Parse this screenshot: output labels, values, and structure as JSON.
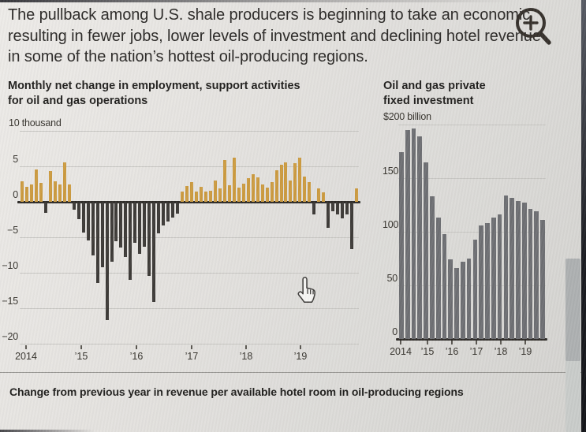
{
  "headline": {
    "lines": [
      "The pullback among U.S. shale producers is beginning to take an economic",
      "resulting in fewer jobs, lower levels of investment and declining hotel revenue",
      "in some of the nation’s hottest oil-producing regions."
    ]
  },
  "zoom_icon": {
    "name": "magnifier-zoom-in"
  },
  "cursor": {
    "name": "hand-pointer"
  },
  "caption": "Change from previous year in revenue per available hotel room in oil-producing regions",
  "colors": {
    "positive_bar": "#cc9b40",
    "negative_bar": "#3d3a37",
    "investment_bar": "#6e6f73",
    "grid": "#c7c6c2",
    "zero_line": "#2e2b28",
    "text": "#2b2927"
  },
  "chart_data": [
    {
      "type": "bar",
      "title": "Monthly net change in employment, support activities for oil and gas operations",
      "title_lines": [
        "Monthly net change in employment, support activities",
        "for oil and gas operations"
      ],
      "ylabel": "10 thousand",
      "ylim": [
        -20,
        10
      ],
      "yticks": [
        {
          "v": 10,
          "label": "10 thousand",
          "unit": true
        },
        {
          "v": 5,
          "label": "5"
        },
        {
          "v": 0,
          "label": "0"
        },
        {
          "v": -5,
          "label": "−5"
        },
        {
          "v": -10,
          "label": "−10"
        },
        {
          "v": -15,
          "label": "−15"
        },
        {
          "v": -20,
          "label": "−20"
        }
      ],
      "xtick_labels": [
        "2014",
        "’15",
        "’16",
        "’17",
        "’18",
        "’19"
      ],
      "values": [
        2.9,
        2.1,
        2.5,
        4.6,
        2.7,
        -1.4,
        4.3,
        2.9,
        2.4,
        5.6,
        2.5,
        -1.0,
        -2.3,
        -4.2,
        -5.3,
        -7.4,
        -11.3,
        -9.1,
        -16.5,
        -8.3,
        -5.4,
        -6.3,
        -7.7,
        -10.9,
        -5.7,
        -7.2,
        -6.2,
        -10.3,
        -14.0,
        -4.3,
        -3.2,
        -2.7,
        -2.1,
        -1.6,
        1.5,
        2.2,
        2.8,
        1.5,
        2.1,
        1.4,
        1.6,
        3.0,
        1.9,
        5.9,
        2.3,
        6.2,
        2.0,
        2.6,
        3.3,
        3.9,
        3.5,
        2.4,
        2.0,
        2.8,
        4.5,
        5.2,
        5.6,
        3.0,
        5.4,
        6.2,
        3.6,
        2.8,
        -1.7,
        1.9,
        1.3,
        -3.6,
        -1.2,
        -1.7,
        -2.2,
        -1.7,
        -6.6,
        1.9
      ],
      "bar_colors": {
        "positive": "#cc9b40",
        "negative": "#3d3a37"
      }
    },
    {
      "type": "bar",
      "title": "Oil and gas private fixed investment",
      "title_lines": [
        "Oil and gas private",
        "fixed investment"
      ],
      "ylabel": "$200 billion",
      "ylim": [
        0,
        200
      ],
      "yticks": [
        {
          "v": 200,
          "label": "$200 billion",
          "unit": true
        },
        {
          "v": 150,
          "label": "150"
        },
        {
          "v": 100,
          "label": "100"
        },
        {
          "v": 50,
          "label": "50"
        },
        {
          "v": 0,
          "label": "0"
        }
      ],
      "xtick_labels": [
        "2014",
        "’15",
        "’16",
        "’17",
        "’18",
        "’19"
      ],
      "values": [
        174,
        195,
        196,
        189,
        165,
        133,
        113,
        98,
        74,
        66,
        72,
        75,
        93,
        106,
        108,
        113,
        116,
        134,
        132,
        129,
        127,
        121,
        119,
        111
      ],
      "bar_colors": {
        "positive": "#6e6f73",
        "negative": "#6e6f73"
      }
    }
  ]
}
